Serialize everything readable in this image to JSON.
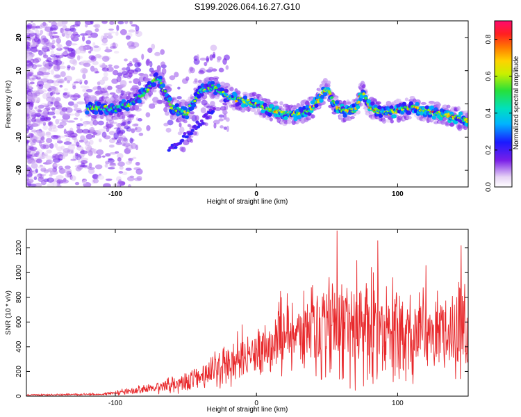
{
  "title": "S199.2026.064.16.27.G10",
  "chart_data": [
    {
      "type": "heatmap",
      "name": "spectrogram",
      "xlabel": "Height of straight line (km)",
      "ylabel": "Frequency (Hz)",
      "xlim": [
        -163,
        150
      ],
      "ylim": [
        -25,
        25
      ],
      "xticks": [
        -100,
        0,
        100
      ],
      "yticks": [
        -20,
        -10,
        0,
        10,
        20
      ],
      "colorbar": {
        "label": "Normalized spectral amplitude",
        "range": [
          0.0,
          0.9
        ],
        "ticks": [
          0.0,
          0.2,
          0.4,
          0.6,
          0.8
        ],
        "tick_labels": [
          "0.0",
          "0.2",
          "0.4",
          "0.6",
          "0.8"
        ]
      },
      "ridge": {
        "x": [
          -115,
          -100,
          -90,
          -80,
          -70,
          -60,
          -50,
          -40,
          -30,
          -20,
          -10,
          0,
          10,
          20,
          30,
          40,
          45,
          50,
          55,
          60,
          70,
          75,
          80,
          90,
          100,
          110,
          120,
          130,
          140,
          150
        ],
        "y": [
          -1,
          -1.5,
          0,
          3,
          8,
          -1,
          -3,
          4,
          5,
          2,
          1,
          0,
          -2,
          -3,
          -3,
          -1,
          2,
          5,
          0,
          -2,
          -2,
          4,
          -1,
          -3,
          -2,
          -1,
          -2,
          -3,
          -4,
          -5
        ]
      }
    },
    {
      "type": "line",
      "name": "snr",
      "xlabel": "Height of straight line (km)",
      "ylabel": "SNR (10 * v/v)",
      "xlim": [
        -163,
        150
      ],
      "ylim": [
        0,
        1350
      ],
      "xticks": [
        -100,
        0,
        100
      ],
      "yticks": [
        0,
        200,
        400,
        600,
        800,
        1000,
        1200
      ],
      "color": "#e8282b",
      "envelope": {
        "x": [
          -163,
          -110,
          -90,
          -60,
          -40,
          -20,
          -10,
          0,
          10,
          20,
          40,
          55,
          60,
          80,
          100,
          120,
          150
        ],
        "mean": [
          10,
          15,
          40,
          90,
          160,
          250,
          330,
          350,
          420,
          480,
          520,
          560,
          560,
          560,
          540,
          520,
          560
        ],
        "spread": [
          8,
          10,
          35,
          80,
          130,
          230,
          250,
          230,
          300,
          380,
          420,
          520,
          600,
          550,
          480,
          450,
          450
        ]
      },
      "peaks": [
        {
          "x": 57,
          "y": 1340
        },
        {
          "x": 86,
          "y": 1260
        },
        {
          "x": 145,
          "y": 1220
        },
        {
          "x": 71,
          "y": 1100
        },
        {
          "x": 120,
          "y": 1060
        },
        {
          "x": 17,
          "y": 850
        },
        {
          "x": -10,
          "y": 580
        }
      ]
    }
  ]
}
